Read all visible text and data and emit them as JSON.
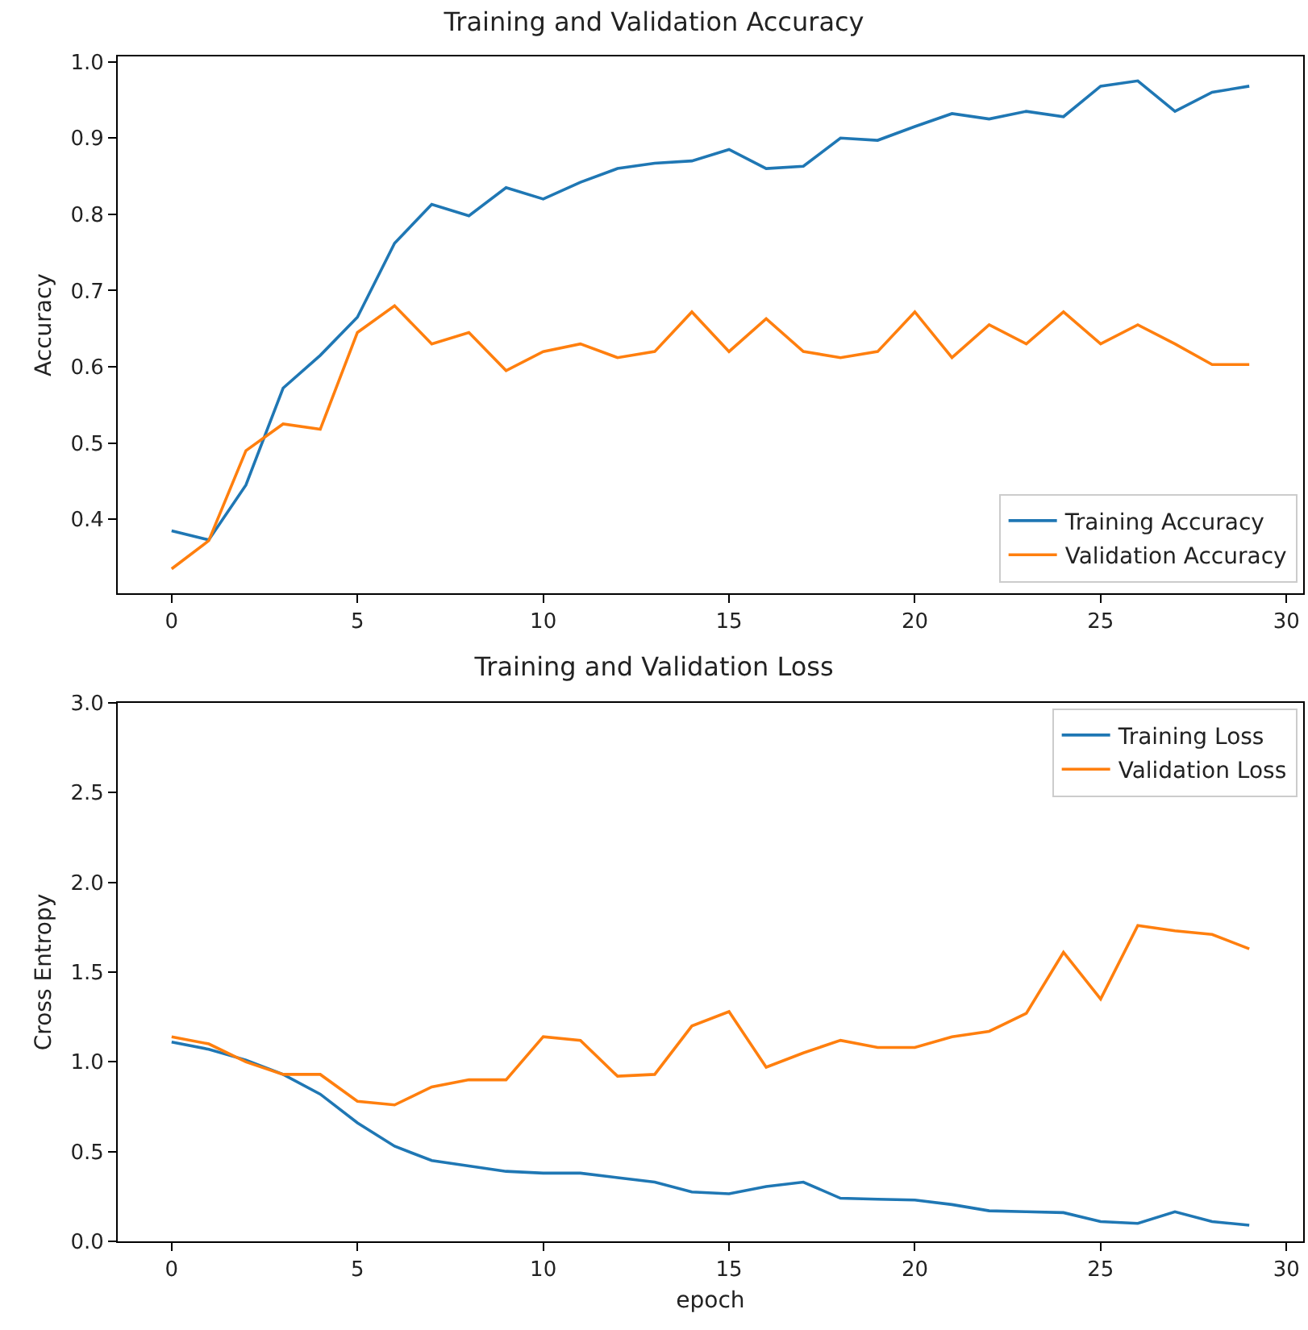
{
  "chart_data": [
    {
      "type": "line",
      "title": "Training and Validation Accuracy",
      "ylabel": "Accuracy",
      "x": [
        0,
        1,
        2,
        3,
        4,
        5,
        6,
        7,
        8,
        9,
        10,
        11,
        12,
        13,
        14,
        15,
        16,
        17,
        18,
        19,
        20,
        21,
        22,
        23,
        24,
        25,
        26,
        27,
        28,
        29
      ],
      "series": [
        {
          "name": "Training Accuracy",
          "color": "#1f77b4",
          "values": [
            0.385,
            0.373,
            0.445,
            0.572,
            0.615,
            0.665,
            0.762,
            0.813,
            0.798,
            0.835,
            0.82,
            0.842,
            0.86,
            0.867,
            0.87,
            0.885,
            0.86,
            0.863,
            0.9,
            0.897,
            0.915,
            0.932,
            0.925,
            0.935,
            0.928,
            0.968,
            0.975,
            0.935,
            0.96,
            0.968
          ]
        },
        {
          "name": "Validation Accuracy",
          "color": "#ff7f0e",
          "values": [
            0.335,
            0.372,
            0.49,
            0.525,
            0.518,
            0.645,
            0.68,
            0.63,
            0.645,
            0.595,
            0.62,
            0.63,
            0.612,
            0.62,
            0.672,
            0.62,
            0.663,
            0.62,
            0.612,
            0.62,
            0.672,
            0.612,
            0.655,
            0.63,
            0.672,
            0.63,
            0.655,
            0.63,
            0.603,
            0.603
          ]
        }
      ],
      "xlim": [
        -1.45,
        30.45
      ],
      "xticks": [
        0,
        5,
        10,
        15,
        20,
        25,
        30
      ],
      "ylim": [
        0.303,
        1.007
      ],
      "yticks": [
        0.4,
        0.5,
        0.6,
        0.7,
        0.8,
        0.9,
        {
          "value": 1,
          "label": "1.0"
        }
      ],
      "grid": false,
      "legend": "bottom right",
      "marker": "none",
      "line_style": "solid"
    },
    {
      "type": "line",
      "title": "Training and Validation Loss",
      "xlabel": "epoch",
      "ylabel": "Cross Entropy",
      "x": [
        0,
        1,
        2,
        3,
        4,
        5,
        6,
        7,
        8,
        9,
        10,
        11,
        12,
        13,
        14,
        15,
        16,
        17,
        18,
        19,
        20,
        21,
        22,
        23,
        24,
        25,
        26,
        27,
        28,
        29
      ],
      "series": [
        {
          "name": "Training Loss",
          "color": "#1f77b4",
          "values": [
            1.11,
            1.07,
            1.01,
            0.93,
            0.82,
            0.66,
            0.53,
            0.45,
            0.42,
            0.39,
            0.38,
            0.38,
            0.355,
            0.33,
            0.275,
            0.265,
            0.305,
            0.33,
            0.24,
            0.235,
            0.23,
            0.205,
            0.17,
            0.165,
            0.16,
            0.11,
            0.1,
            0.165,
            0.11,
            0.09
          ]
        },
        {
          "name": "Validation Loss",
          "color": "#ff7f0e",
          "values": [
            1.14,
            1.1,
            1.0,
            0.93,
            0.93,
            0.78,
            0.76,
            0.86,
            0.9,
            0.9,
            1.14,
            1.12,
            0.92,
            0.93,
            1.2,
            1.28,
            0.97,
            1.05,
            1.12,
            1.08,
            1.08,
            1.14,
            1.17,
            1.27,
            1.61,
            1.35,
            1.76,
            1.73,
            1.71,
            1.63
          ]
        }
      ],
      "xlim": [
        -1.45,
        30.45
      ],
      "xticks": [
        0,
        5,
        10,
        15,
        20,
        25,
        30
      ],
      "ylim": [
        0,
        3
      ],
      "yticks": [
        {
          "value": 0,
          "label": "0.0"
        },
        0.5,
        {
          "value": 1,
          "label": "1.0"
        },
        1.5,
        {
          "value": 2,
          "label": "2.0"
        },
        2.5,
        {
          "value": 3,
          "label": "3.0"
        }
      ],
      "grid": false,
      "legend": "top right",
      "marker": "none",
      "line_style": "solid"
    }
  ]
}
